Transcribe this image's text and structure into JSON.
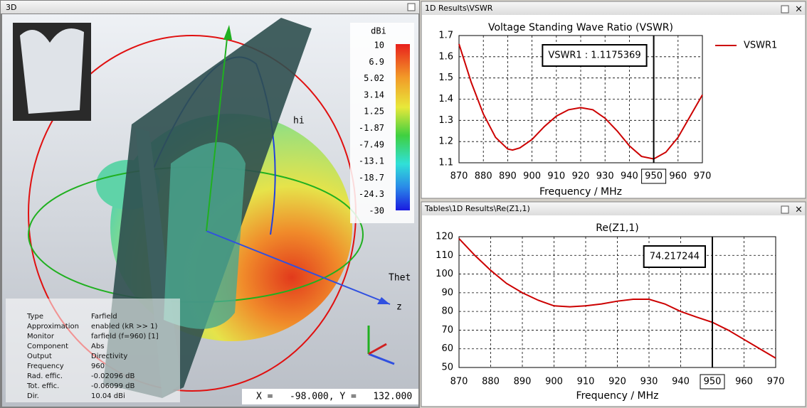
{
  "view3d": {
    "panel_title": "3D",
    "colorbar": {
      "unit": "dBi",
      "labels": [
        "10",
        "6.9",
        "5.02",
        "3.14",
        "1.25",
        "-1.87",
        "-7.49",
        "-13.1",
        "-18.7",
        "-24.3",
        "-30"
      ]
    },
    "axis_labels": [
      "hi",
      "Thet",
      "z"
    ],
    "info_table": {
      "rows": [
        [
          "Type",
          "Farfield"
        ],
        [
          "Approximation",
          "enabled (kR >> 1)"
        ],
        [
          "Monitor",
          "farfield (f=960) [1]"
        ],
        [
          "Component",
          "Abs"
        ],
        [
          "Output",
          "Directivity"
        ],
        [
          "Frequency",
          "960"
        ],
        [
          "Rad. effic.",
          "-0.02096 dB"
        ],
        [
          "Tot. effic.",
          "-0.06099 dB"
        ],
        [
          "Dir.",
          "10.04 dBi"
        ]
      ]
    },
    "coordinates": "X =   -98.000, Y =   132.000"
  },
  "chart_data": [
    {
      "type": "line",
      "panel_title": "1D Results\\VSWR",
      "title": "Voltage Standing Wave Ratio (VSWR)",
      "x_label": "Frequency / MHz",
      "x": [
        870,
        875,
        880,
        885,
        890,
        892,
        895,
        900,
        905,
        910,
        915,
        920,
        925,
        930,
        935,
        940,
        945,
        950,
        955,
        960,
        965,
        970
      ],
      "series": [
        {
          "name": "VSWR1",
          "color": "#cc0000",
          "values": [
            1.66,
            1.48,
            1.33,
            1.22,
            1.165,
            1.16,
            1.17,
            1.21,
            1.27,
            1.32,
            1.35,
            1.36,
            1.35,
            1.31,
            1.25,
            1.18,
            1.13,
            1.118,
            1.15,
            1.22,
            1.32,
            1.42
          ]
        }
      ],
      "xlim": [
        870,
        970
      ],
      "xticks": [
        870,
        880,
        890,
        900,
        910,
        920,
        930,
        940,
        950,
        960,
        970
      ],
      "ylim": [
        1.1,
        1.7
      ],
      "yticks": [
        1.1,
        1.2,
        1.3,
        1.4,
        1.5,
        1.6,
        1.7
      ],
      "grid": true,
      "legend": "right",
      "marker": {
        "x": 950,
        "label": "VSWR1 : 1.1175369"
      }
    },
    {
      "type": "line",
      "panel_title": "Tables\\1D Results\\Re(Z1,1)",
      "title": "Re(Z1,1)",
      "x_label": "Frequency / MHz",
      "x": [
        870,
        875,
        880,
        885,
        890,
        895,
        900,
        905,
        910,
        915,
        920,
        925,
        930,
        935,
        940,
        945,
        950,
        955,
        960,
        965,
        970
      ],
      "series": [
        {
          "color": "#cc0000",
          "values": [
            119,
            110,
            102,
            95,
            90,
            86,
            83,
            82.5,
            83,
            84,
            85.5,
            86.5,
            86.5,
            84,
            80,
            77,
            74.2,
            70,
            65,
            60,
            55
          ]
        }
      ],
      "xlim": [
        870,
        970
      ],
      "xticks": [
        870,
        880,
        890,
        900,
        910,
        920,
        930,
        940,
        950,
        960,
        970
      ],
      "ylim": [
        50,
        120
      ],
      "yticks": [
        50,
        60,
        70,
        80,
        90,
        100,
        110,
        120
      ],
      "grid": true,
      "marker": {
        "x": 950,
        "label": "74.217244"
      }
    }
  ]
}
